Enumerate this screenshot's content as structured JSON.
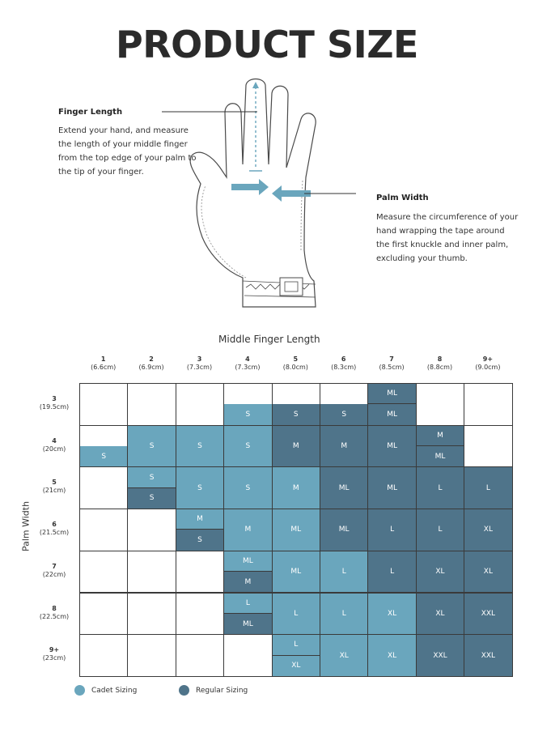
{
  "title": "PRODUCT SIZE",
  "finger_length": {
    "title": "Finger Length",
    "lines": [
      "Extend your hand, and measure",
      "the length of your middle finger",
      "from the top edge of your palm to",
      "the tip of your finger."
    ]
  },
  "palm_width": {
    "title": "Palm Width",
    "lines": [
      "Measure the circumference of your",
      "hand wrapping the tape around",
      "the first knuckle and inner palm,",
      "excluding your thumb."
    ]
  },
  "chart_data": {
    "type": "table",
    "x_title": "Middle Finger Length",
    "y_title": "Palm Width",
    "columns": [
      {
        "n": "1",
        "cm": "(6.6cm)"
      },
      {
        "n": "2",
        "cm": "(6.9cm)"
      },
      {
        "n": "3",
        "cm": "(7.3cm)"
      },
      {
        "n": "4",
        "cm": "(7.3cm)"
      },
      {
        "n": "5",
        "cm": "(8.0cm)"
      },
      {
        "n": "6",
        "cm": "(8.3cm)"
      },
      {
        "n": "7",
        "cm": "(8.5cm)"
      },
      {
        "n": "8",
        "cm": "(8.8cm)"
      },
      {
        "n": "9+",
        "cm": "(9.0cm)"
      }
    ],
    "rows": [
      {
        "n": "3",
        "cm": "(19.5cm)",
        "cells": [
          [],
          [],
          [],
          [
            [
              "S",
              "cadet",
              "bottom"
            ]
          ],
          [
            [
              "S",
              "regular",
              "bottom"
            ]
          ],
          [
            [
              "S",
              "regular",
              "bottom"
            ]
          ],
          [
            [
              "ML",
              "regular",
              "top"
            ],
            [
              "ML",
              "regular",
              "bottom"
            ]
          ],
          [],
          []
        ]
      },
      {
        "n": "4",
        "cm": "(20cm)",
        "cells": [
          [
            [
              "S",
              "cadet",
              "bottom"
            ]
          ],
          [
            [
              "S",
              "cadet",
              "full"
            ]
          ],
          [
            [
              "S",
              "cadet",
              "full"
            ]
          ],
          [
            [
              "S",
              "cadet",
              "full"
            ]
          ],
          [
            [
              "M",
              "regular",
              "full"
            ]
          ],
          [
            [
              "M",
              "regular",
              "full"
            ]
          ],
          [
            [
              "ML",
              "regular",
              "full"
            ]
          ],
          [
            [
              "M",
              "regular",
              "top"
            ],
            [
              "ML",
              "regular",
              "bottom"
            ]
          ],
          []
        ]
      },
      {
        "n": "5",
        "cm": "(21cm)",
        "cells": [
          [],
          [
            [
              "S",
              "cadet",
              "top"
            ],
            [
              "S",
              "regular",
              "bottom"
            ]
          ],
          [
            [
              "S",
              "cadet",
              "full"
            ]
          ],
          [
            [
              "S",
              "cadet",
              "full"
            ]
          ],
          [
            [
              "M",
              "cadet",
              "full"
            ]
          ],
          [
            [
              "ML",
              "regular",
              "full"
            ]
          ],
          [
            [
              "ML",
              "regular",
              "full"
            ]
          ],
          [
            [
              "L",
              "regular",
              "full"
            ]
          ],
          [
            [
              "L",
              "regular",
              "full"
            ]
          ]
        ]
      },
      {
        "n": "6",
        "cm": "(21.5cm)",
        "cells": [
          [],
          [],
          [
            [
              "M",
              "cadet",
              "top"
            ],
            [
              "S",
              "regular",
              "bottom"
            ]
          ],
          [
            [
              "M",
              "cadet",
              "full"
            ]
          ],
          [
            [
              "ML",
              "cadet",
              "full"
            ]
          ],
          [
            [
              "ML",
              "regular",
              "full"
            ]
          ],
          [
            [
              "L",
              "regular",
              "full"
            ]
          ],
          [
            [
              "L",
              "regular",
              "full"
            ]
          ],
          [
            [
              "XL",
              "regular",
              "full"
            ]
          ]
        ]
      },
      {
        "n": "7",
        "cm": "(22cm)",
        "cells": [
          [],
          [],
          [],
          [
            [
              "ML",
              "cadet",
              "top"
            ],
            [
              "M",
              "regular",
              "bottom"
            ]
          ],
          [
            [
              "ML",
              "cadet",
              "full"
            ]
          ],
          [
            [
              "L",
              "cadet",
              "full"
            ]
          ],
          [
            [
              "L",
              "regular",
              "full"
            ]
          ],
          [
            [
              "XL",
              "regular",
              "full"
            ]
          ],
          [
            [
              "XL",
              "regular",
              "full"
            ]
          ]
        ]
      },
      {
        "n": "8",
        "cm": "(22.5cm)",
        "cells": [
          [],
          [],
          [],
          [
            [
              "L",
              "cadet",
              "top"
            ],
            [
              "ML",
              "regular",
              "bottom"
            ]
          ],
          [
            [
              "L",
              "cadet",
              "full"
            ]
          ],
          [
            [
              "L",
              "cadet",
              "full"
            ]
          ],
          [
            [
              "XL",
              "cadet",
              "full"
            ]
          ],
          [
            [
              "XL",
              "regular",
              "full"
            ]
          ],
          [
            [
              "XXL",
              "regular",
              "full"
            ]
          ]
        ]
      },
      {
        "n": "9+",
        "cm": "(23cm)",
        "cells": [
          [],
          [],
          [],
          [],
          [
            [
              "L",
              "cadet",
              "top"
            ],
            [
              "XL",
              "cadet",
              "bottom"
            ]
          ],
          [
            [
              "XL",
              "cadet",
              "full"
            ]
          ],
          [
            [
              "XL",
              "cadet",
              "full"
            ]
          ],
          [
            [
              "XXL",
              "regular",
              "full"
            ]
          ],
          [
            [
              "XXL",
              "regular",
              "full"
            ]
          ]
        ]
      }
    ],
    "legend": [
      {
        "label": "Cadet Sizing",
        "color": "#6aa6bd"
      },
      {
        "label": "Regular Sizing",
        "color": "#4f748a"
      }
    ]
  }
}
